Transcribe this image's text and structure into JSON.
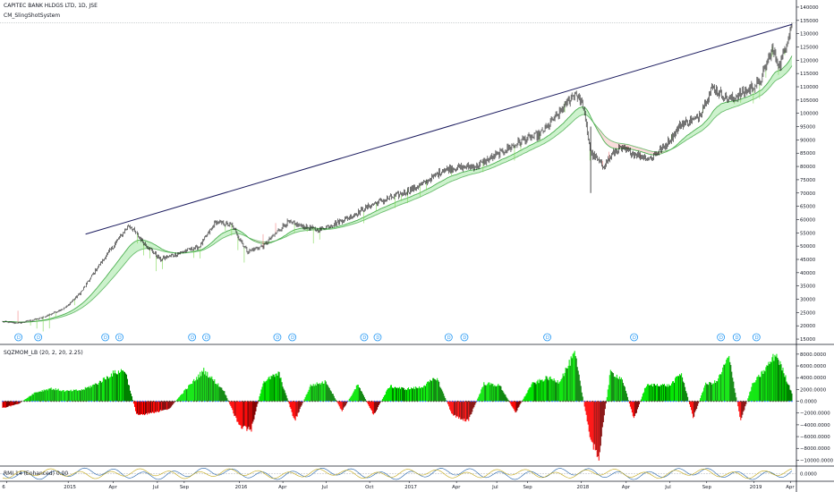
{
  "header": {
    "symbol_title": "CAPITEC BANK HLDGS LTD, 1D, JSE",
    "indicator1": "CM_SlingShotSystem",
    "indicator2": "SQZMOM_LB (20, 2, 20, 2.25)",
    "indicator3": "RMI 14 (Enhanced) 0.00"
  },
  "colors": {
    "candle": "#000000",
    "trendline": "#1a1a5e",
    "ema_fill_up": "#b2ebb2",
    "ema_line_up": "#4caf50",
    "ema_fill_down": "#f7c9c9",
    "ema_line_down": "#e53935",
    "bar_vol_up": "#7ed957",
    "bar_vol_down": "#f08080",
    "sqz_lime": "#00e600",
    "sqz_green": "#008000",
    "sqz_red": "#ff0000",
    "sqz_maroon": "#800000",
    "dividend": "#2196f3",
    "rmi_line1": "#1e5fa8",
    "rmi_line2": "#c1a50f",
    "gridline": "#131722"
  },
  "chart_data": [
    {
      "type": "candlestick",
      "title": "CAPITEC BANK HLDGS LTD, 1D, JSE",
      "x_ticks": [
        "6",
        "2015",
        "Apr",
        "Jul",
        "Sep",
        "2016",
        "Apr",
        "Jul",
        "Oct",
        "2017",
        "Apr",
        "Jul",
        "Sep",
        "2018",
        "Apr",
        "Jul",
        "Sep",
        "2019",
        "Apr"
      ],
      "y_ticks": [
        15000,
        20000,
        25000,
        30000,
        35000,
        40000,
        45000,
        50000,
        55000,
        60000,
        65000,
        70000,
        75000,
        80000,
        85000,
        90000,
        95000,
        100000,
        105000,
        110000,
        115000,
        120000,
        125000,
        130000,
        135000,
        140000
      ],
      "ylim": [
        13000,
        142000
      ],
      "grid": false,
      "price_path": [
        {
          "t": 0.0,
          "v": 21500
        },
        {
          "t": 0.02,
          "v": 21000
        },
        {
          "t": 0.05,
          "v": 23000
        },
        {
          "t": 0.08,
          "v": 27000
        },
        {
          "t": 0.1,
          "v": 33000
        },
        {
          "t": 0.12,
          "v": 42000
        },
        {
          "t": 0.14,
          "v": 50000
        },
        {
          "t": 0.16,
          "v": 58000
        },
        {
          "t": 0.18,
          "v": 51000
        },
        {
          "t": 0.2,
          "v": 45000
        },
        {
          "t": 0.22,
          "v": 47000
        },
        {
          "t": 0.25,
          "v": 50000
        },
        {
          "t": 0.27,
          "v": 59000
        },
        {
          "t": 0.29,
          "v": 58000
        },
        {
          "t": 0.31,
          "v": 48000
        },
        {
          "t": 0.33,
          "v": 50000
        },
        {
          "t": 0.36,
          "v": 59000
        },
        {
          "t": 0.4,
          "v": 56000
        },
        {
          "t": 0.44,
          "v": 61000
        },
        {
          "t": 0.47,
          "v": 66000
        },
        {
          "t": 0.5,
          "v": 69000
        },
        {
          "t": 0.53,
          "v": 73000
        },
        {
          "t": 0.56,
          "v": 79000
        },
        {
          "t": 0.6,
          "v": 80000
        },
        {
          "t": 0.63,
          "v": 85000
        },
        {
          "t": 0.66,
          "v": 90000
        },
        {
          "t": 0.68,
          "v": 92000
        },
        {
          "t": 0.705,
          "v": 100000
        },
        {
          "t": 0.725,
          "v": 108000
        },
        {
          "t": 0.735,
          "v": 103000
        },
        {
          "t": 0.745,
          "v": 85000
        },
        {
          "t": 0.76,
          "v": 80000
        },
        {
          "t": 0.78,
          "v": 87000
        },
        {
          "t": 0.8,
          "v": 85000
        },
        {
          "t": 0.82,
          "v": 83000
        },
        {
          "t": 0.84,
          "v": 88000
        },
        {
          "t": 0.86,
          "v": 96000
        },
        {
          "t": 0.88,
          "v": 98000
        },
        {
          "t": 0.9,
          "v": 110000
        },
        {
          "t": 0.92,
          "v": 105000
        },
        {
          "t": 0.94,
          "v": 108000
        },
        {
          "t": 0.96,
          "v": 112000
        },
        {
          "t": 0.975,
          "v": 124000
        },
        {
          "t": 0.985,
          "v": 118000
        },
        {
          "t": 1.0,
          "v": 134000
        }
      ],
      "trendline": {
        "start": {
          "t": 0.105,
          "v": 54500
        },
        "end": {
          "t": 1.0,
          "v": 133500
        }
      },
      "dividend_markers": [
        "D",
        "D",
        "D",
        "D",
        "D",
        "D",
        "D",
        "D",
        "D",
        "D",
        "D",
        "D",
        "D",
        "D",
        "D",
        "D",
        "D"
      ]
    },
    {
      "type": "bar",
      "title": "SQZMOM_LB (20, 2, 20, 2.25)",
      "y_ticks": [
        -10000,
        -8000,
        -6000,
        -4000,
        -2000,
        0,
        2000,
        4000,
        6000,
        8000
      ],
      "ylim": [
        -11000,
        9500
      ],
      "momentum_path": [
        {
          "t": 0.0,
          "v": -1200
        },
        {
          "t": 0.02,
          "v": -500
        },
        {
          "t": 0.04,
          "v": 1500
        },
        {
          "t": 0.06,
          "v": 2300
        },
        {
          "t": 0.08,
          "v": 1800
        },
        {
          "t": 0.1,
          "v": 2000
        },
        {
          "t": 0.12,
          "v": 3200
        },
        {
          "t": 0.14,
          "v": 5000
        },
        {
          "t": 0.155,
          "v": 5600
        },
        {
          "t": 0.17,
          "v": -2500
        },
        {
          "t": 0.19,
          "v": -2000
        },
        {
          "t": 0.21,
          "v": -1500
        },
        {
          "t": 0.23,
          "v": 1800
        },
        {
          "t": 0.255,
          "v": 5500
        },
        {
          "t": 0.28,
          "v": 2000
        },
        {
          "t": 0.3,
          "v": -4500
        },
        {
          "t": 0.315,
          "v": -5000
        },
        {
          "t": 0.33,
          "v": 3500
        },
        {
          "t": 0.35,
          "v": 5000
        },
        {
          "t": 0.37,
          "v": -3500
        },
        {
          "t": 0.39,
          "v": 2800
        },
        {
          "t": 0.41,
          "v": 3500
        },
        {
          "t": 0.43,
          "v": -1800
        },
        {
          "t": 0.45,
          "v": 3000
        },
        {
          "t": 0.47,
          "v": -2500
        },
        {
          "t": 0.49,
          "v": 2700
        },
        {
          "t": 0.51,
          "v": 2200
        },
        {
          "t": 0.53,
          "v": 2500
        },
        {
          "t": 0.55,
          "v": 4200
        },
        {
          "t": 0.57,
          "v": -2500
        },
        {
          "t": 0.59,
          "v": -3500
        },
        {
          "t": 0.61,
          "v": 3200
        },
        {
          "t": 0.63,
          "v": 2800
        },
        {
          "t": 0.65,
          "v": -2000
        },
        {
          "t": 0.67,
          "v": 3000
        },
        {
          "t": 0.69,
          "v": 4200
        },
        {
          "t": 0.705,
          "v": 3500
        },
        {
          "t": 0.725,
          "v": 8500
        },
        {
          "t": 0.745,
          "v": -7000
        },
        {
          "t": 0.755,
          "v": -10000
        },
        {
          "t": 0.77,
          "v": 5200
        },
        {
          "t": 0.785,
          "v": 4000
        },
        {
          "t": 0.8,
          "v": -3200
        },
        {
          "t": 0.815,
          "v": 2800
        },
        {
          "t": 0.83,
          "v": 3000
        },
        {
          "t": 0.845,
          "v": 2800
        },
        {
          "t": 0.86,
          "v": 5000
        },
        {
          "t": 0.875,
          "v": -3000
        },
        {
          "t": 0.89,
          "v": 3000
        },
        {
          "t": 0.905,
          "v": 3500
        },
        {
          "t": 0.92,
          "v": 8000
        },
        {
          "t": 0.935,
          "v": -3500
        },
        {
          "t": 0.95,
          "v": 3000
        },
        {
          "t": 0.965,
          "v": 5500
        },
        {
          "t": 0.98,
          "v": 8500
        },
        {
          "t": 1.0,
          "v": 1500
        }
      ]
    },
    {
      "type": "line",
      "title": "RMI 14 (Enhanced) 0.00",
      "y_ticks": [
        0
      ],
      "tick_label": "0.0000"
    }
  ]
}
